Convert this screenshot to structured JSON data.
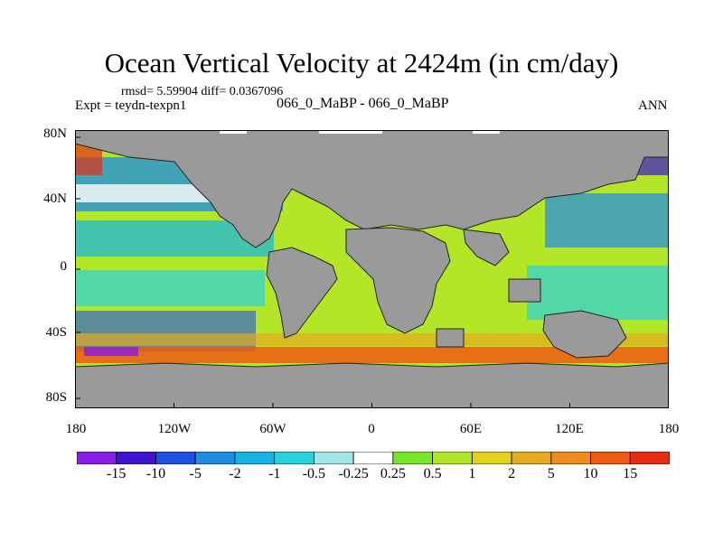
{
  "title": "Ocean Vertical Velocity at 2424m (in cm/day)",
  "stats": "rmsd= 5.59904 diff= 0.0367096",
  "experiment": "Expt = teydn-texpn1",
  "case_label": "066_0_MaBP - 066_0_MaBP",
  "season": "ANN",
  "y_axis": {
    "ticks": [
      "80N",
      "40N",
      "0",
      "40S",
      "80S"
    ]
  },
  "x_axis": {
    "ticks": [
      "180",
      "120W",
      "60W",
      "0",
      "60E",
      "120E",
      "180"
    ]
  },
  "colorbar": {
    "labels": [
      "-15",
      "-10",
      "-5",
      "-2",
      "-1",
      "-0.5",
      "-0.25",
      "0.25",
      "0.5",
      "1",
      "2",
      "5",
      "10",
      "15"
    ],
    "colors": [
      "#8b1ee6",
      "#3c14d2",
      "#1e50e6",
      "#1e8ce6",
      "#14b4e6",
      "#28d2dc",
      "#a0e6e6",
      "#ffffff",
      "#78e628",
      "#b4e628",
      "#e6d21e",
      "#e6aa1e",
      "#f08c1e",
      "#f05a14",
      "#e62d14"
    ]
  },
  "land_color": "#9a9a9a"
}
